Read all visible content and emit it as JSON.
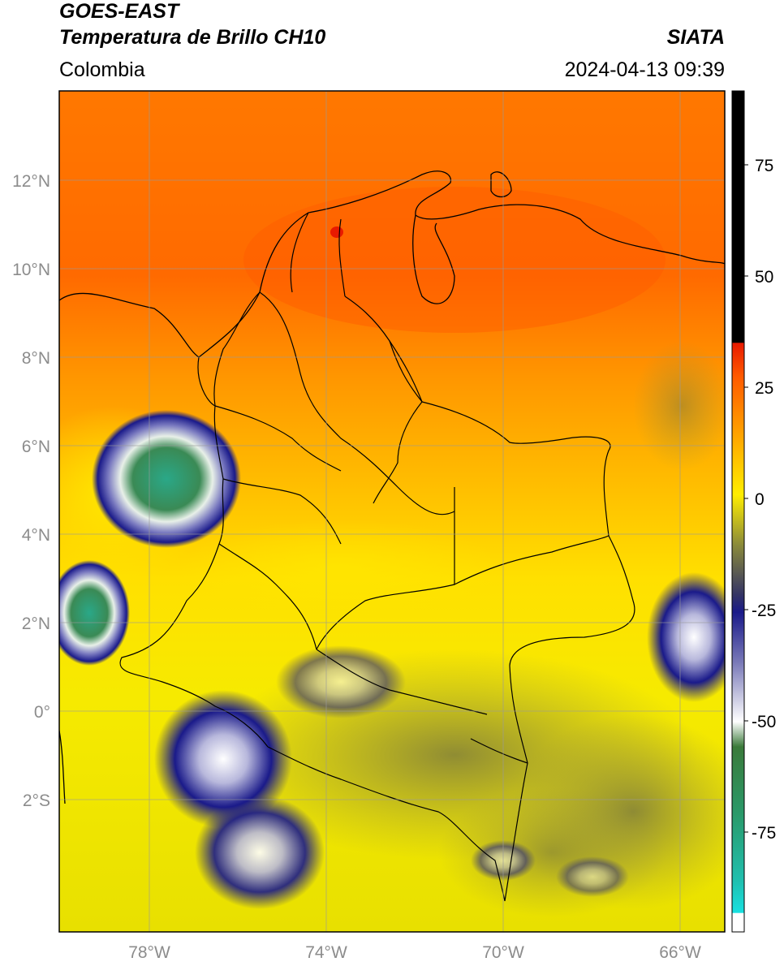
{
  "header": {
    "title_line1": "GOES-EAST",
    "title_line2": "Temperatura de Brillo CH10",
    "region": "Colombia",
    "organization": "SIATA",
    "datetime": "2024-04-13 09:39"
  },
  "map": {
    "lat_labels": [
      "12°N",
      "10°N",
      "8°N",
      "6°N",
      "4°N",
      "2°N",
      "0°",
      "2°S"
    ],
    "lon_labels": [
      "78°W",
      "74°W",
      "70°W",
      "66°W"
    ]
  },
  "colorbar": {
    "tick_labels": [
      "75",
      "50",
      "25",
      "0",
      "-25",
      "-50",
      "-75"
    ],
    "colors": {
      "black": "#000000",
      "red": "#e81a00",
      "orange": "#ff8a00",
      "yellow": "#ffee00",
      "olive": "#8a8a3a",
      "navy": "#1a1a8a",
      "white": "#ffffff",
      "green": "#3a8a3a",
      "cyan": "#22dddd"
    }
  }
}
